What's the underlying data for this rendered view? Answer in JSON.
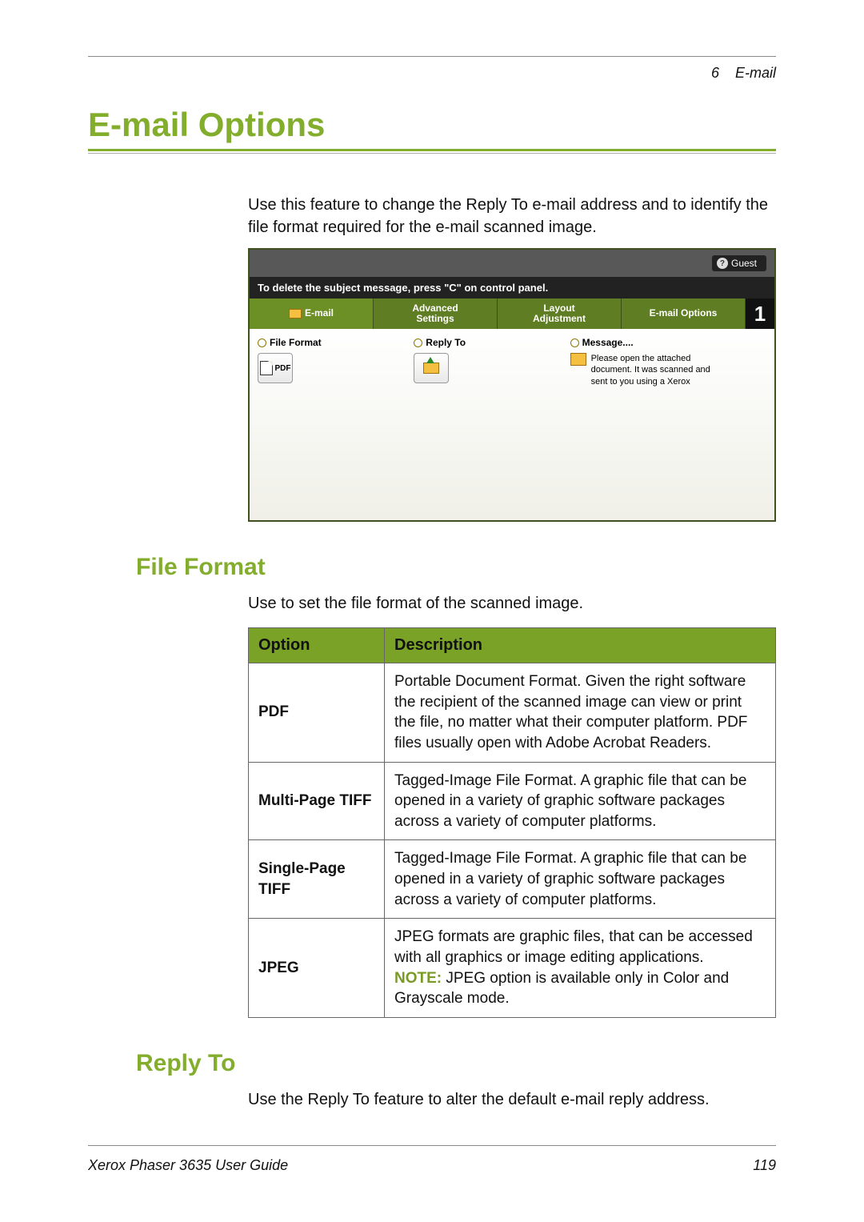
{
  "header": {
    "chapter": "6",
    "chapter_title": "E-mail"
  },
  "title": "E-mail Options",
  "intro": "Use this feature to change the Reply To e-mail address and to identify the file format required for the e-mail scanned image.",
  "screenshot": {
    "guest_label": "Guest",
    "delete_msg": "To delete the subject message, press \"C\" on control panel.",
    "tabs": {
      "email": "E-mail",
      "advanced_l1": "Advanced",
      "advanced_l2": "Settings",
      "layout_l1": "Layout",
      "layout_l2": "Adjustment",
      "options": "E-mail Options",
      "count": "1"
    },
    "panel": {
      "file_format_label": "File Format",
      "file_format_value": "PDF",
      "reply_to_label": "Reply To",
      "message_label": "Message....",
      "message_text": "Please open the attached document. It was scanned and sent to you using a Xerox"
    }
  },
  "sections": {
    "file_format": {
      "heading": "File Format",
      "desc": "Use to set the file format of the scanned image.",
      "table": {
        "col_option": "Option",
        "col_desc": "Description",
        "rows": {
          "pdf": {
            "name": "PDF",
            "desc": "Portable Document Format. Given the right software the recipient of the scanned image can view or print the file, no matter what their computer platform. PDF files usually open with Adobe Acrobat Readers."
          },
          "mtiff": {
            "name": "Multi-Page TIFF",
            "desc": "Tagged-Image File Format. A graphic file that can be opened in a variety of graphic software packages across a variety of computer platforms."
          },
          "stiff": {
            "name": "Single-Page TIFF",
            "desc": "Tagged-Image File Format. A graphic file that can be opened in a variety of graphic software packages across a variety of computer platforms."
          },
          "jpeg": {
            "name": "JPEG",
            "desc_pre": "JPEG formats are graphic files, that can be accessed with all graphics or image editing applications.",
            "note_label": "NOTE:",
            "note_text": " JPEG option is available only in Color and Grayscale mode."
          }
        }
      }
    },
    "reply_to": {
      "heading": "Reply To",
      "desc": "Use the Reply To feature to alter the default e-mail reply address."
    }
  },
  "footer": {
    "guide": "Xerox Phaser 3635 User Guide",
    "page": "119"
  }
}
